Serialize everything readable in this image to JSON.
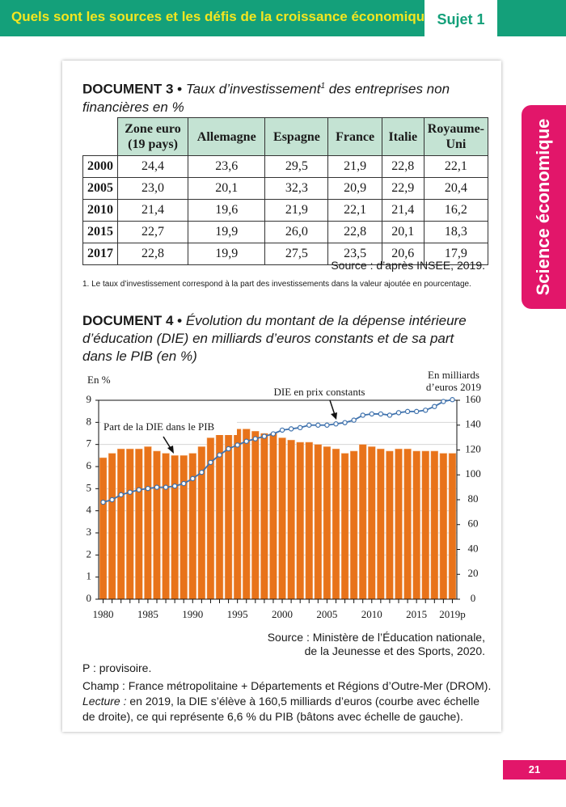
{
  "header": {
    "title": "Quels sont les sources et les défis de la croissance économique ?",
    "subject": "Sujet 1"
  },
  "side_tab": "Science économique",
  "document3": {
    "label": "DOCUMENT 3 •",
    "title": "Taux d’investissement",
    "title_sup": "1",
    "title_rest": "des entreprises non financières en %",
    "table": {
      "columns": [
        "Zone euro (19 pays)",
        "Allemagne",
        "Espagne",
        "France",
        "Italie",
        "Royaume-Uni"
      ],
      "rows": [
        [
          "2000",
          "24,4",
          "23,6",
          "29,5",
          "21,9",
          "22,8",
          "22,1"
        ],
        [
          "2005",
          "23,0",
          "20,1",
          "32,3",
          "20,9",
          "22,9",
          "20,4"
        ],
        [
          "2010",
          "21,4",
          "19,6",
          "21,9",
          "22,1",
          "21,4",
          "16,2"
        ],
        [
          "2015",
          "22,7",
          "19,9",
          "26,0",
          "22,8",
          "20,1",
          "18,3"
        ],
        [
          "2017",
          "22,8",
          "19,9",
          "27,5",
          "23,5",
          "20,6",
          "17,9"
        ]
      ]
    },
    "source": "Source : d’après INSEE, 2019.",
    "footnote": "1. Le taux d’investissement correspond à la part des investissements dans la valeur ajoutée en pourcentage."
  },
  "document4": {
    "label": "DOCUMENT 4 •",
    "title": "Évolution du montant de la dépense intérieure d’éducation (DIE) en milliards d’euros constants et de sa part dans le PIB (en %)",
    "source": [
      "Source : Ministère de l’Éducation nationale,",
      "de la Jeunesse et des Sports, 2020."
    ],
    "notes": {
      "provisional": "P : provisoire.",
      "scope": "Champ : France métropolitaine + Départements et Régions d’Outre-Mer (DROM).",
      "reading_label": "Lecture :",
      "reading": "en 2019, la DIE s’élève à 160,5 milliards d’euros (courbe avec échelle de droite), ce qui représente 6,6 % du PIB (bâtons avec échelle de gauche)."
    }
  },
  "chart_data": {
    "type": "bar",
    "y_label": "En %",
    "y2_label": "En milliards d’euros 2019",
    "categories": [
      "1980",
      null,
      null,
      null,
      null,
      "1985",
      null,
      null,
      null,
      null,
      "1990",
      null,
      null,
      null,
      null,
      "1995",
      null,
      null,
      null,
      null,
      "2000",
      null,
      null,
      null,
      null,
      "2005",
      null,
      null,
      null,
      null,
      "2010",
      null,
      null,
      null,
      null,
      "2015",
      null,
      null,
      null,
      "2019p"
    ],
    "series": [
      {
        "name": "Part de la DIE dans le PIB",
        "type": "bar",
        "color": "#e8731a",
        "values": [
          6.4,
          6.6,
          6.8,
          6.8,
          6.8,
          6.9,
          6.7,
          6.6,
          6.5,
          6.5,
          6.6,
          6.9,
          7.3,
          7.6,
          7.6,
          7.7,
          7.7,
          7.6,
          7.5,
          7.5,
          7.3,
          7.2,
          7.1,
          7.1,
          7.0,
          6.9,
          6.8,
          6.6,
          6.7,
          7.0,
          6.9,
          6.8,
          6.7,
          6.8,
          6.8,
          6.7,
          6.7,
          6.7,
          6.6,
          6.6
        ]
      },
      {
        "name": "DIE en prix constants",
        "type": "line",
        "axis": "y2",
        "color": "#3f72ad",
        "values": [
          78,
          80,
          84,
          86,
          88,
          89,
          90,
          90,
          91,
          93,
          97,
          102,
          110,
          116,
          121,
          124,
          127,
          129,
          131,
          133,
          136,
          137,
          138,
          140,
          140,
          140,
          141,
          142,
          144,
          148,
          149,
          149,
          148,
          150,
          151,
          151,
          152,
          155,
          159,
          160.5
        ]
      }
    ],
    "ylim": [
      0,
      9
    ],
    "yticks": [
      0,
      1,
      2,
      3,
      4,
      5,
      6,
      7,
      8,
      9
    ],
    "y2lim": [
      0,
      160
    ],
    "y2ticks": [
      0,
      20,
      40,
      60,
      80,
      100,
      120,
      140,
      160
    ],
    "grid": true
  }
}
